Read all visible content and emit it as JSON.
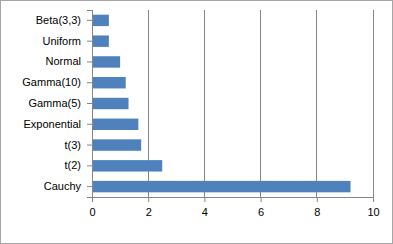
{
  "chart_data": {
    "type": "bar",
    "orientation": "horizontal",
    "categories": [
      "Beta(3,3)",
      "Uniform",
      "Normal",
      "Gamma(10)",
      "Gamma(5)",
      "Exponential",
      "t(3)",
      "t(2)",
      "Cauchy"
    ],
    "values": [
      0.6,
      0.6,
      1.0,
      1.2,
      1.3,
      1.65,
      1.75,
      2.5,
      9.2
    ],
    "color": "#4f81bd",
    "xlim": [
      0,
      10
    ],
    "xticks": [
      0,
      2,
      4,
      6,
      8,
      10
    ],
    "grid": true
  }
}
